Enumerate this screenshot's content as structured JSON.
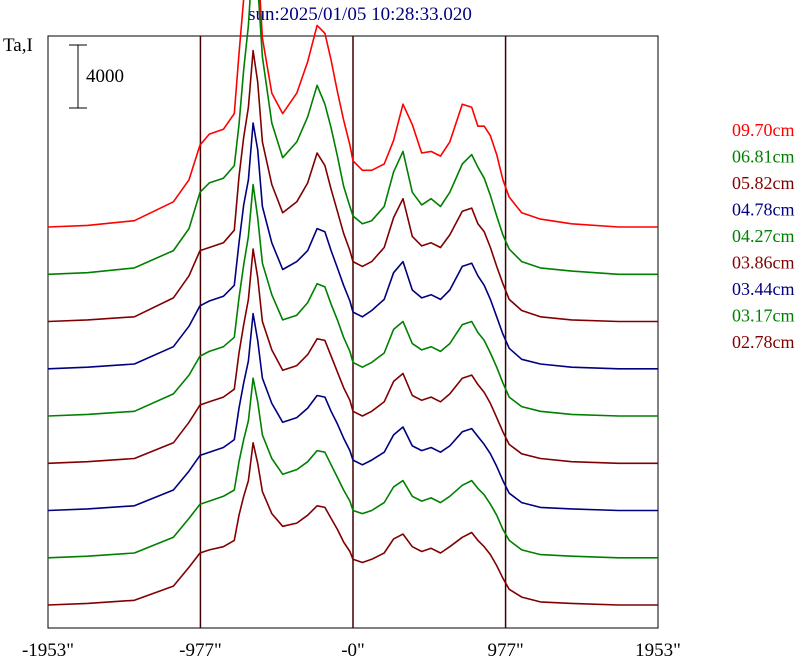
{
  "chart_data": {
    "type": "line",
    "title": "sun:2025/01/05 10:28:33.020",
    "ylabel": "Ta,I",
    "scale_bar_label": "4000",
    "x_ticks": [
      "-1953\"",
      "-977\"",
      "-0\"",
      "977\"",
      "1953\""
    ],
    "x_tick_values": [
      -1953,
      -977,
      0,
      977,
      1953
    ],
    "xlim": [
      -1953,
      1953
    ],
    "vertical_markers": [
      -977,
      0,
      977
    ],
    "legend_placement": "right",
    "grid": false,
    "profile_x": [
      -1953,
      -1700,
      -1400,
      -1150,
      -1050,
      -980,
      -920,
      -830,
      -760,
      -730,
      -700,
      -670,
      -640,
      -610,
      -580,
      -520,
      -450,
      -360,
      -290,
      -230,
      -180,
      -140,
      -100,
      -60,
      -20,
      0,
      60,
      120,
      200,
      260,
      320,
      380,
      440,
      500,
      560,
      620,
      700,
      760,
      800,
      840,
      880,
      920,
      960,
      1000,
      1080,
      1200,
      1400,
      1700,
      1953
    ],
    "series": [
      {
        "name": "09.70cm",
        "color": "#ff0000",
        "base": 0,
        "values": [
          0,
          100,
          400,
          1600,
          3000,
          5200,
          5900,
          6200,
          7200,
          11000,
          14500,
          16800,
          17400,
          17100,
          12000,
          8500,
          7200,
          8500,
          10500,
          12800,
          12300,
          10600,
          8600,
          6800,
          5200,
          4200,
          3600,
          3600,
          4000,
          5500,
          7800,
          6500,
          4700,
          4800,
          4500,
          5400,
          7800,
          7600,
          6400,
          6400,
          5800,
          4600,
          3000,
          1900,
          900,
          500,
          200,
          0,
          0
        ]
      },
      {
        "name": "06.81cm",
        "color": "#008000",
        "base": -3000,
        "values": [
          0,
          100,
          400,
          1500,
          2900,
          5200,
          5800,
          6100,
          6900,
          9500,
          13000,
          15800,
          20500,
          18400,
          13800,
          9600,
          7400,
          8400,
          10000,
          12000,
          10800,
          9300,
          7500,
          5600,
          4300,
          3700,
          3200,
          3400,
          4300,
          6500,
          7800,
          5200,
          4400,
          4800,
          4300,
          5200,
          7000,
          7600,
          6800,
          6100,
          5000,
          3700,
          2500,
          1600,
          800,
          400,
          200,
          0,
          0
        ]
      },
      {
        "name": "05.82cm",
        "color": "#800000",
        "base": -6000,
        "values": [
          0,
          100,
          300,
          1500,
          2900,
          4500,
          4700,
          5000,
          5800,
          9200,
          11700,
          13600,
          17200,
          15200,
          11400,
          8700,
          6900,
          7600,
          8800,
          10700,
          9900,
          8400,
          7000,
          5600,
          4500,
          3800,
          3500,
          3800,
          4700,
          6600,
          7800,
          5400,
          4800,
          5000,
          4700,
          5500,
          7000,
          7200,
          6200,
          5700,
          4700,
          3500,
          2400,
          1400,
          700,
          300,
          100,
          0,
          0
        ]
      },
      {
        "name": "04.78cm",
        "color": "#000080",
        "base": -9000,
        "values": [
          0,
          100,
          300,
          1400,
          2700,
          4000,
          4300,
          4600,
          5300,
          8000,
          10400,
          12000,
          15600,
          13900,
          10300,
          8000,
          6300,
          6800,
          7500,
          8900,
          8700,
          7500,
          6400,
          5300,
          4300,
          3600,
          3300,
          3700,
          4400,
          6100,
          6800,
          5000,
          4500,
          4700,
          4400,
          5000,
          6500,
          6700,
          5900,
          5300,
          4400,
          3300,
          2200,
          1300,
          600,
          300,
          100,
          0,
          0
        ]
      },
      {
        "name": "04.27cm",
        "color": "#008000",
        "base": -12000,
        "values": [
          0,
          100,
          300,
          1400,
          2600,
          3800,
          4100,
          4400,
          5000,
          7500,
          9600,
          11400,
          14700,
          12600,
          9700,
          7700,
          6100,
          6400,
          7200,
          8400,
          8200,
          7100,
          6100,
          5000,
          4100,
          3400,
          3100,
          3400,
          4000,
          5500,
          6000,
          4600,
          4200,
          4400,
          4100,
          4600,
          5800,
          6000,
          5300,
          4800,
          4000,
          3100,
          2100,
          1200,
          600,
          300,
          100,
          0,
          0
        ]
      },
      {
        "name": "03.86cm",
        "color": "#800000",
        "base": -15000,
        "values": [
          0,
          100,
          300,
          1300,
          2600,
          3700,
          3900,
          4200,
          4700,
          7000,
          8800,
          10400,
          13600,
          11800,
          9000,
          7200,
          5900,
          6200,
          6900,
          7900,
          7800,
          6800,
          5800,
          4800,
          4000,
          3300,
          3000,
          3300,
          3900,
          5200,
          5700,
          4300,
          4000,
          4200,
          3900,
          4400,
          5400,
          5600,
          5000,
          4500,
          3800,
          2900,
          2000,
          1200,
          600,
          300,
          100,
          0,
          0
        ]
      },
      {
        "name": "03.44cm",
        "color": "#000080",
        "base": -18000,
        "values": [
          0,
          100,
          300,
          1300,
          2500,
          3500,
          3700,
          4000,
          4500,
          6500,
          8100,
          9500,
          12500,
          10800,
          8400,
          6800,
          5600,
          5900,
          6500,
          7300,
          7200,
          6300,
          5500,
          4600,
          3800,
          3200,
          2900,
          3200,
          3700,
          4800,
          5300,
          4100,
          3800,
          4000,
          3700,
          4100,
          5000,
          5200,
          4700,
          4200,
          3600,
          2800,
          1900,
          1100,
          500,
          200,
          100,
          0,
          0
        ]
      },
      {
        "name": "03.17cm",
        "color": "#008000",
        "base": -21000,
        "values": [
          0,
          100,
          300,
          1300,
          2500,
          3400,
          3600,
          3900,
          4300,
          6100,
          7500,
          8700,
          11400,
          9900,
          7800,
          6300,
          5300,
          5600,
          6100,
          6800,
          6700,
          5900,
          5100,
          4300,
          3600,
          3000,
          2800,
          3000,
          3500,
          4500,
          4900,
          3900,
          3600,
          3800,
          3500,
          3900,
          4600,
          4900,
          4400,
          4000,
          3400,
          2700,
          1800,
          1100,
          500,
          200,
          100,
          0,
          0
        ]
      },
      {
        "name": "02.78cm",
        "color": "#800000",
        "base": -24000,
        "values": [
          0,
          100,
          300,
          1200,
          2400,
          3300,
          3500,
          3700,
          4100,
          5700,
          6900,
          7900,
          10300,
          9000,
          7200,
          5800,
          5000,
          5200,
          5700,
          6300,
          6200,
          5500,
          4800,
          4000,
          3400,
          2900,
          2700,
          2900,
          3300,
          4200,
          4500,
          3700,
          3400,
          3600,
          3300,
          3700,
          4300,
          4600,
          4100,
          3700,
          3200,
          2500,
          1700,
          1000,
          500,
          200,
          100,
          0,
          0
        ]
      }
    ]
  }
}
